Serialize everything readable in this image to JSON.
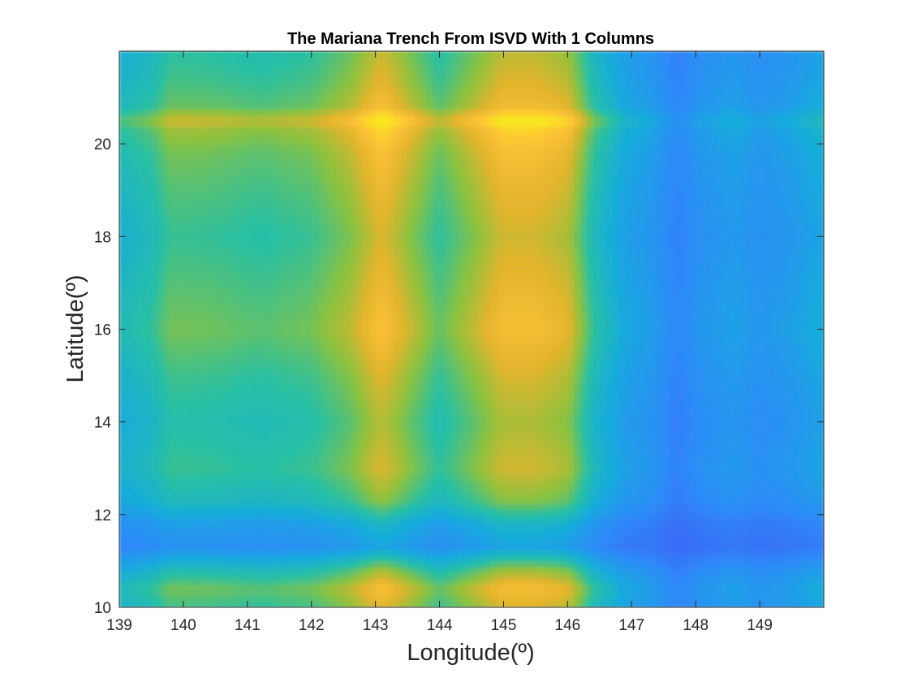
{
  "chart_data": {
    "type": "heatmap",
    "title": "The Mariana Trench From ISVD With 1 Columns",
    "xlabel": "Longitude(º)",
    "ylabel": "Latitude(º)",
    "xlim": [
      139,
      150
    ],
    "ylim": [
      10,
      22
    ],
    "xticks": [
      139,
      140,
      141,
      142,
      143,
      144,
      145,
      146,
      147,
      148,
      149
    ],
    "yticks": [
      10,
      12,
      14,
      16,
      18,
      20
    ],
    "grid": false,
    "colormap": [
      "#3e26a8",
      "#4352f6",
      "#2d8af8",
      "#17acdc",
      "#28c0a4",
      "#8cc23f",
      "#e1b42c",
      "#fdc236",
      "#f9e420"
    ],
    "rank": 1,
    "column_profile": {
      "lon": [
        139.0,
        139.5,
        139.8,
        140.4,
        141.2,
        142.0,
        142.6,
        143.1,
        143.6,
        144.0,
        144.5,
        145.0,
        145.5,
        146.0,
        146.4,
        146.9,
        147.3,
        147.7,
        148.1,
        148.6,
        149.0,
        149.5,
        150.0
      ],
      "value": [
        0.34,
        0.42,
        0.55,
        0.54,
        0.5,
        0.55,
        0.7,
        0.96,
        0.7,
        0.52,
        0.7,
        0.92,
        0.92,
        0.82,
        0.42,
        0.2,
        0.14,
        0.02,
        0.1,
        0.16,
        0.1,
        0.15,
        0.24
      ]
    },
    "row_profile": {
      "lat": [
        10.0,
        10.4,
        10.8,
        11.3,
        11.8,
        12.3,
        13.0,
        14.0,
        15.0,
        16.0,
        17.0,
        18.0,
        19.0,
        19.8,
        20.3,
        20.5,
        20.8,
        21.3,
        22.0
      ],
      "value": [
        0.5,
        0.62,
        0.4,
        0.05,
        0.14,
        0.36,
        0.49,
        0.42,
        0.5,
        0.62,
        0.55,
        0.48,
        0.55,
        0.62,
        0.72,
        0.86,
        0.6,
        0.52,
        0.45
      ]
    }
  }
}
